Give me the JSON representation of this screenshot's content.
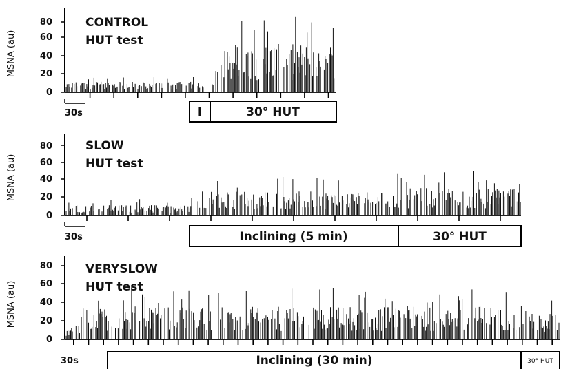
{
  "chart_data": [
    {
      "type": "line",
      "title_line1": "CONTROL",
      "title_line2": "HUT test",
      "ylabel": "MSNA (au)",
      "yticks": [
        "80",
        "60",
        "40",
        "20",
        "0"
      ],
      "ylim": [
        0,
        80
      ],
      "scale_bar_label": "30s",
      "baseline_segments": [
        {
          "start": 0,
          "end": 180,
          "amplitude": 12
        },
        {
          "start": 180,
          "end": 190,
          "amplitude": 28
        },
        {
          "start": 190,
          "end": 340,
          "amplitude": 55
        }
      ],
      "phases": [
        {
          "label": "I",
          "start": 180,
          "end": 190
        },
        {
          "label": "30° HUT",
          "start": 190,
          "end": 340
        }
      ],
      "duration_s": 340
    },
    {
      "type": "line",
      "title_line1": "SLOW",
      "title_line2": "HUT test",
      "ylabel": "MSNA (au)",
      "yticks": [
        "80",
        "60",
        "40",
        "20",
        "0"
      ],
      "ylim": [
        0,
        80
      ],
      "scale_bar_label": "30s",
      "baseline_segments": [
        {
          "start": 0,
          "end": 180,
          "amplitude": 12
        },
        {
          "start": 180,
          "end": 480,
          "amplitude": 28
        },
        {
          "start": 480,
          "end": 660,
          "amplitude": 32
        }
      ],
      "phases": [
        {
          "label": "Inclining (5 min)",
          "start": 180,
          "end": 480
        },
        {
          "label": "30° HUT",
          "start": 480,
          "end": 660
        }
      ],
      "duration_s": 660
    },
    {
      "type": "line",
      "title_line1": "VERYSLOW",
      "title_line2": "HUT test",
      "ylabel": "MSNA (au)",
      "yticks": [
        "80",
        "60",
        "40",
        "20",
        "0"
      ],
      "ylim": [
        0,
        80
      ],
      "scale_bar_label": "30s",
      "baseline_segments": [
        {
          "start": 0,
          "end": 60,
          "amplitude": 15
        },
        {
          "start": 60,
          "end": 1860,
          "amplitude": 36
        },
        {
          "start": 1860,
          "end": 1980,
          "amplitude": 30
        }
      ],
      "phases": [
        {
          "label": "Inclining (30 min)",
          "start": 60,
          "end": 1860
        },
        {
          "label": "30° HUT",
          "start": 1860,
          "end": 1980
        }
      ],
      "duration_s": 1980
    }
  ]
}
